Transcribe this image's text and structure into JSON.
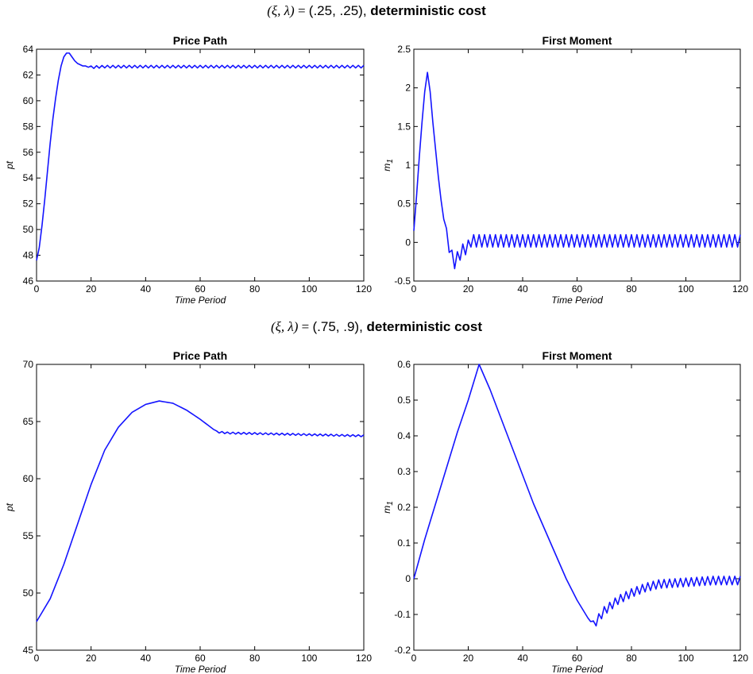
{
  "sections": [
    {
      "symbols": "(ξ, λ)",
      "equals": " = ",
      "params": "(.25, .25),",
      "cost_label": "deterministic cost"
    },
    {
      "symbols": "(ξ, λ)",
      "equals": " = ",
      "params": "(.75, .9),",
      "cost_label": "deterministic cost"
    }
  ],
  "line_color": "#1414ff",
  "chart_data": [
    {
      "type": "line",
      "title": "Price Path",
      "xlabel": "Time Period",
      "ylabel": "pt",
      "xlim": [
        0,
        120
      ],
      "ylim": [
        46,
        64
      ],
      "xticks": [
        0,
        20,
        40,
        60,
        80,
        100,
        120
      ],
      "yticks": [
        46,
        48,
        50,
        52,
        54,
        56,
        58,
        60,
        62,
        64
      ],
      "series": [
        {
          "x": [
            0,
            1,
            2,
            3,
            4,
            5,
            6,
            7,
            8,
            9,
            10,
            11,
            12,
            13,
            14,
            15,
            16,
            17,
            18,
            19,
            20,
            25,
            30,
            40,
            60,
            80,
            100,
            120
          ],
          "y": [
            47.6,
            48.6,
            50.3,
            52.3,
            54.5,
            56.7,
            58.6,
            60.2,
            61.6,
            62.7,
            63.4,
            63.7,
            63.7,
            63.4,
            63.1,
            62.9,
            62.8,
            62.7,
            62.7,
            62.6,
            62.6,
            62.65,
            62.65,
            62.65,
            62.65,
            62.65,
            62.65,
            62.65
          ],
          "oscillation": {
            "from": 20,
            "amplitude": 0.1,
            "period": 2
          }
        }
      ]
    },
    {
      "type": "line",
      "title": "First Moment",
      "xlabel": "Time Period",
      "ylabel": "m1",
      "ylabel_main": "m",
      "ylabel_sub": "1",
      "xlim": [
        0,
        120
      ],
      "ylim": [
        -0.5,
        2.5
      ],
      "xticks": [
        0,
        20,
        40,
        60,
        80,
        100,
        120
      ],
      "yticks": [
        -0.5,
        0,
        0.5,
        1,
        1.5,
        2,
        2.5
      ],
      "series": [
        {
          "x": [
            0,
            1,
            2,
            3,
            4,
            5,
            6,
            7,
            8,
            9,
            10,
            11,
            12,
            13,
            14,
            15,
            16,
            17,
            18,
            19,
            20,
            21,
            30,
            40,
            60,
            80,
            100,
            120
          ],
          "y": [
            0.15,
            0.6,
            1.1,
            1.55,
            1.95,
            2.2,
            1.95,
            1.55,
            1.2,
            0.85,
            0.55,
            0.3,
            0.1,
            -0.05,
            -0.18,
            -0.26,
            -0.2,
            -0.15,
            -0.1,
            -0.08,
            -0.05,
            0.02,
            0.02,
            0.02,
            0.02,
            0.02,
            0.02,
            0.02
          ],
          "oscillation": {
            "from": 12,
            "amplitude": 0.08,
            "period": 2
          }
        }
      ]
    },
    {
      "type": "line",
      "title": "Price Path",
      "xlabel": "Time Period",
      "ylabel": "pt",
      "xlim": [
        0,
        120
      ],
      "ylim": [
        45,
        70
      ],
      "xticks": [
        0,
        20,
        40,
        60,
        80,
        100,
        120
      ],
      "yticks": [
        45,
        50,
        55,
        60,
        65,
        70
      ],
      "series": [
        {
          "x": [
            0,
            5,
            10,
            15,
            20,
            25,
            30,
            35,
            40,
            45,
            50,
            55,
            60,
            65,
            66,
            70,
            80,
            90,
            100,
            110,
            120
          ],
          "y": [
            47.5,
            49.5,
            52.5,
            56.0,
            59.5,
            62.5,
            64.5,
            65.8,
            66.5,
            66.8,
            66.6,
            66.0,
            65.2,
            64.3,
            64.1,
            64.0,
            63.95,
            63.9,
            63.85,
            63.8,
            63.75
          ],
          "oscillation": {
            "from": 66,
            "amplitude": 0.08,
            "period": 2
          }
        }
      ]
    },
    {
      "type": "line",
      "title": "First Moment",
      "xlabel": "Time Period",
      "ylabel": "m1",
      "ylabel_main": "m",
      "ylabel_sub": "1",
      "xlim": [
        0,
        120
      ],
      "ylim": [
        -0.2,
        0.6
      ],
      "xticks": [
        0,
        20,
        40,
        60,
        80,
        100,
        120
      ],
      "yticks": [
        -0.2,
        -0.1,
        0,
        0.1,
        0.2,
        0.3,
        0.4,
        0.5,
        0.6
      ],
      "series": [
        {
          "x": [
            0,
            4,
            8,
            12,
            16,
            20,
            24,
            28,
            32,
            36,
            40,
            44,
            48,
            52,
            56,
            60,
            64,
            66,
            70,
            75,
            80,
            85,
            90,
            100,
            110,
            120
          ],
          "y": [
            0.0,
            0.11,
            0.21,
            0.31,
            0.41,
            0.5,
            0.6,
            0.53,
            0.45,
            0.37,
            0.29,
            0.21,
            0.14,
            0.07,
            0.0,
            -0.06,
            -0.11,
            -0.13,
            -0.09,
            -0.06,
            -0.04,
            -0.025,
            -0.015,
            -0.01,
            -0.005,
            -0.005
          ],
          "oscillation": {
            "from": 66,
            "amplitude": 0.012,
            "period": 2
          }
        }
      ]
    }
  ]
}
